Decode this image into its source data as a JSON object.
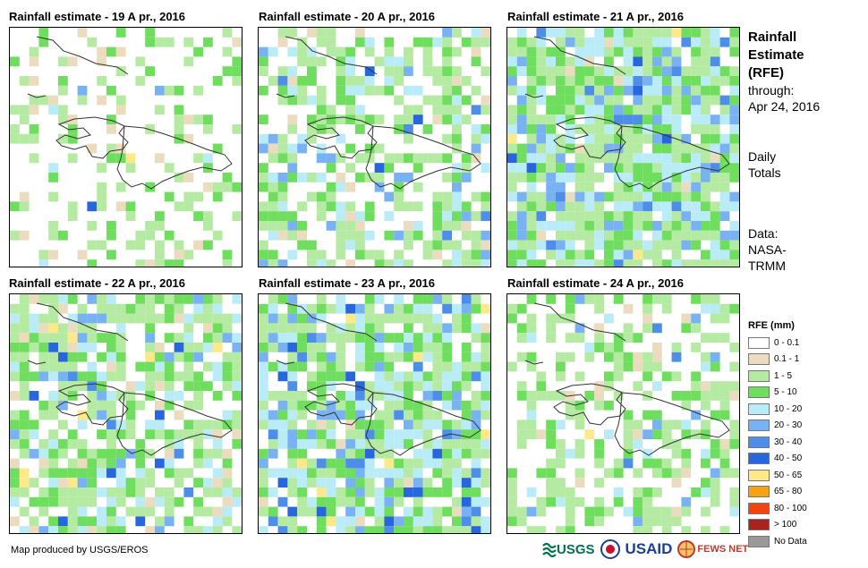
{
  "panels": [
    {
      "title": "Rainfall estimate - 19 A pr., 2016"
    },
    {
      "title": "Rainfall estimate - 20 A pr., 2016"
    },
    {
      "title": "Rainfall estimate - 21 A pr., 2016"
    },
    {
      "title": "Rainfall estimate - 22 A pr., 2016"
    },
    {
      "title": "Rainfall estimate - 23 A pr., 2016"
    },
    {
      "title": "Rainfall estimate - 24 A pr., 2016"
    }
  ],
  "sidebar": {
    "title_line1": "Rainfall",
    "title_line2": "Estimate",
    "title_line3": "(RFE)",
    "through_label": "through:",
    "through_date": "Apr 24, 2016",
    "totals_line1": "Daily",
    "totals_line2": "Totals",
    "data_line1": "Data:",
    "data_line2": "NASA-",
    "data_line3": "TRMM"
  },
  "legend": {
    "title": "RFE (mm)",
    "items": [
      {
        "label": "0 - 0.1",
        "color": "#ffffff"
      },
      {
        "label": "0.1 - 1",
        "color": "#ecdcbf"
      },
      {
        "label": "1 - 5",
        "color": "#b5eaa2"
      },
      {
        "label": "5 - 10",
        "color": "#6fde5e"
      },
      {
        "label": "10 - 20",
        "color": "#b9ecf7"
      },
      {
        "label": "20 - 30",
        "color": "#79b2f2"
      },
      {
        "label": "30 - 40",
        "color": "#4d8ee8"
      },
      {
        "label": "40 - 50",
        "color": "#2866dd"
      },
      {
        "label": "50 - 65",
        "color": "#fde98a"
      },
      {
        "label": "65 - 80",
        "color": "#f6a313"
      },
      {
        "label": "80 - 100",
        "color": "#f44313"
      },
      {
        "label": "> 100",
        "color": "#a8231d"
      },
      {
        "label": "No Data",
        "color": "#999999"
      }
    ]
  },
  "footer": {
    "credit": "Map produced by USGS/EROS"
  },
  "logos": {
    "usgs": "USGS",
    "usaid": "USAID",
    "fewsnet": "FEWS NET"
  }
}
